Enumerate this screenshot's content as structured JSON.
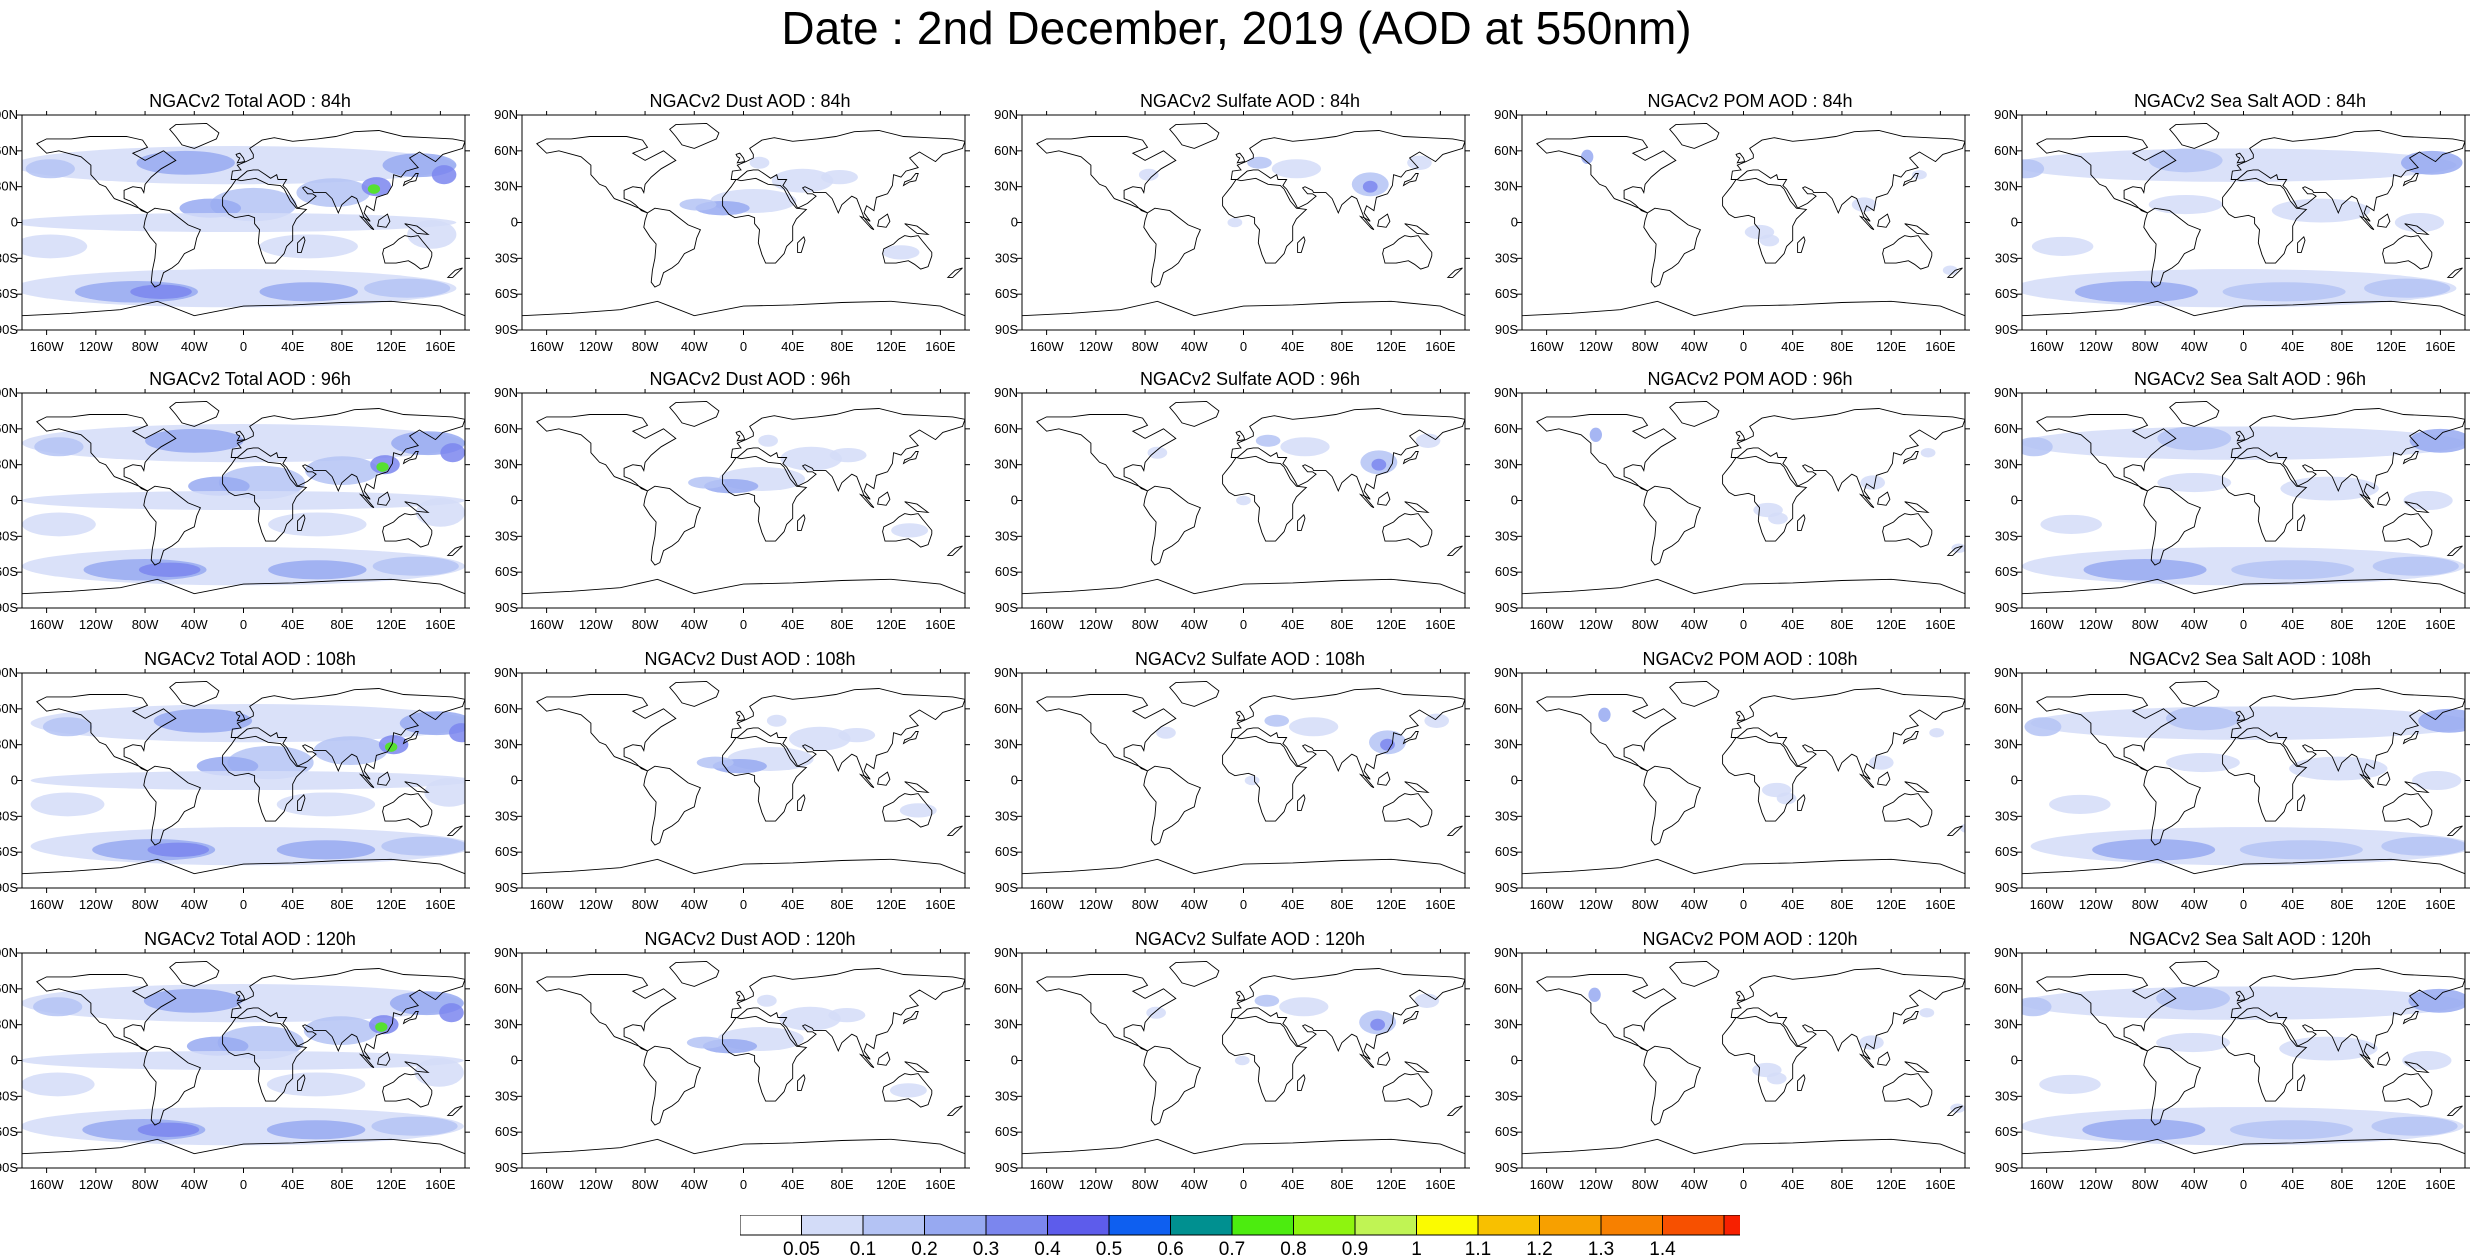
{
  "title": "Date : 2nd December, 2019 (AOD at 550nm)",
  "lon_labels": [
    "160W",
    "120W",
    "80W",
    "40W",
    "0",
    "40E",
    "80E",
    "120E",
    "160E"
  ],
  "lat_labels": [
    "90N",
    "60N",
    "30N",
    "0",
    "30S",
    "60S",
    "90S"
  ],
  "colorbar": {
    "colors": [
      "#ffffff",
      "#d3dcf8",
      "#b4c3f4",
      "#97a9f1",
      "#7b86ee",
      "#5d5ceb",
      "#0e5ff0",
      "#009090",
      "#4cec0f",
      "#8ef40f",
      "#c0f454",
      "#fbfb00",
      "#f8c000",
      "#f7a000",
      "#f78000",
      "#f75000",
      "#f72000"
    ],
    "labels": [
      "0.05",
      "0.1",
      "0.2",
      "0.3",
      "0.4",
      "0.5",
      "0.6",
      "0.7",
      "0.8",
      "0.9",
      "1",
      "1.1",
      "1.2",
      "1.3",
      "1.4"
    ]
  },
  "panels": [
    {
      "title": "NGACv2 Total AOD : 84h"
    },
    {
      "title": "NGACv2 Dust AOD : 84h"
    },
    {
      "title": "NGACv2 Sulfate AOD : 84h"
    },
    {
      "title": "NGACv2 POM AOD : 84h"
    },
    {
      "title": "NGACv2 Sea Salt AOD : 84h"
    },
    {
      "title": "NGACv2 Total AOD : 96h"
    },
    {
      "title": "NGACv2 Dust AOD : 96h"
    },
    {
      "title": "NGACv2 Sulfate AOD : 96h"
    },
    {
      "title": "NGACv2 POM AOD : 96h"
    },
    {
      "title": "NGACv2 Sea Salt AOD : 96h"
    },
    {
      "title": "NGACv2 Total AOD : 108h"
    },
    {
      "title": "NGACv2 Dust AOD : 108h"
    },
    {
      "title": "NGACv2 Sulfate AOD : 108h"
    },
    {
      "title": "NGACv2 POM AOD : 108h"
    },
    {
      "title": "NGACv2 Sea Salt AOD : 108h"
    },
    {
      "title": "NGACv2 Total AOD : 120h"
    },
    {
      "title": "NGACv2 Dust AOD : 120h"
    },
    {
      "title": "NGACv2 Sulfate AOD : 120h"
    },
    {
      "title": "NGACv2 POM AOD : 120h"
    },
    {
      "title": "NGACv2 Sea Salt  AOD : 120h"
    }
  ]
}
